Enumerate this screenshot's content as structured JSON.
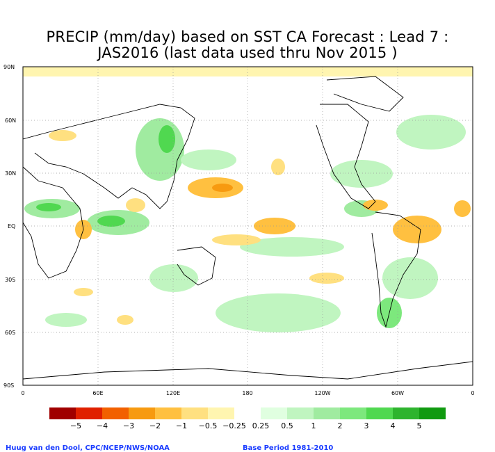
{
  "title": {
    "line1": "PRECIP (mm/day) based on SST CA Forecast : Lead 7 :",
    "line2": "JAS2016 (last data used thru Nov 2015 )"
  },
  "map": {
    "projection": "equirectangular",
    "lat_labels": [
      "90N",
      "60N",
      "30N",
      "EQ",
      "30S",
      "60S",
      "90S"
    ],
    "lon_labels": [
      "0",
      "60E",
      "120E",
      "180",
      "120W",
      "60W",
      "0"
    ],
    "gridlines": "dotted"
  },
  "legend": {
    "labels": [
      "−5",
      "−4",
      "−3",
      "−2",
      "−1",
      "−0.5",
      "−0.25",
      "0.25",
      "0.5",
      "1",
      "2",
      "3",
      "4",
      "5"
    ],
    "colors": [
      "#a00000",
      "#e02000",
      "#f26000",
      "#f79a10",
      "#ffc040",
      "#ffe080",
      "#fff5b0",
      "#ffffff",
      "#e0ffe0",
      "#c0f5c0",
      "#a0eba0",
      "#7de87d",
      "#50d850",
      "#2eb42e",
      "#109a10"
    ]
  },
  "credits": {
    "author": "Huug van den Dool, CPC/NCEP/NWS/NOAA",
    "base_period": "Base Period 1981-2010"
  }
}
